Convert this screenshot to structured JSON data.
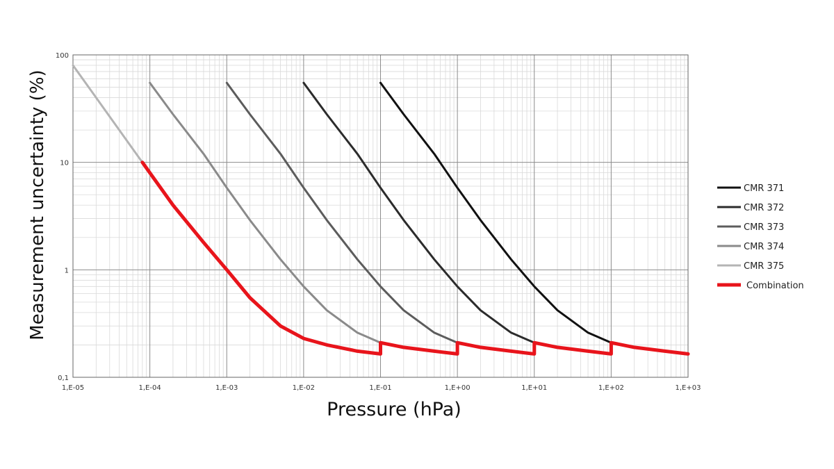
{
  "chart_data": {
    "type": "line",
    "title": "",
    "xlabel": "Pressure (hPa)",
    "ylabel": "Measurement uncertainty (%)",
    "x_scale": "log",
    "y_scale": "log",
    "xlim": [
      1e-05,
      1000
    ],
    "ylim": [
      0.1,
      100
    ],
    "grid": true,
    "legend_position": "right",
    "x_ticks": [
      {
        "value": 1e-05,
        "label": "1,E-05"
      },
      {
        "value": 0.0001,
        "label": "1,E-04"
      },
      {
        "value": 0.001,
        "label": "1,E-03"
      },
      {
        "value": 0.01,
        "label": "1,E-02"
      },
      {
        "value": 0.1,
        "label": "1,E-01"
      },
      {
        "value": 1,
        "label": "1,E+00"
      },
      {
        "value": 10,
        "label": "1,E+01"
      },
      {
        "value": 100,
        "label": "1,E+02"
      },
      {
        "value": 1000,
        "label": "1,E+03"
      }
    ],
    "y_ticks": [
      {
        "value": 0.1,
        "label": "0,1"
      },
      {
        "value": 1,
        "label": "1"
      },
      {
        "value": 10,
        "label": "10"
      },
      {
        "value": 100,
        "label": "100"
      }
    ],
    "series": [
      {
        "name": "CMR 371",
        "color": "#111111",
        "x": [
          0.1,
          0.2,
          0.5,
          1,
          2,
          5,
          10,
          20,
          50,
          100
        ],
        "y": [
          55,
          28,
          12,
          5.8,
          2.9,
          1.25,
          0.7,
          0.42,
          0.26,
          0.21
        ]
      },
      {
        "name": "CMR 372",
        "color": "#2b2b2b",
        "x": [
          0.01,
          0.02,
          0.05,
          0.1,
          0.2,
          0.5,
          1,
          2,
          5,
          10
        ],
        "y": [
          55,
          28,
          12,
          5.8,
          2.9,
          1.25,
          0.7,
          0.42,
          0.26,
          0.21
        ]
      },
      {
        "name": "CMR 373",
        "color": "#5c5c5c",
        "x": [
          0.001,
          0.002,
          0.005,
          0.01,
          0.02,
          0.05,
          0.1,
          0.2,
          0.5,
          1
        ],
        "y": [
          55,
          28,
          12,
          5.8,
          2.9,
          1.25,
          0.7,
          0.42,
          0.26,
          0.21
        ]
      },
      {
        "name": "CMR 374",
        "color": "#8a8a8a",
        "x": [
          0.0001,
          0.0002,
          0.0005,
          0.001,
          0.002,
          0.005,
          0.01,
          0.02,
          0.05,
          0.1
        ],
        "y": [
          55,
          28,
          12,
          5.8,
          2.9,
          1.25,
          0.7,
          0.42,
          0.26,
          0.21
        ]
      },
      {
        "name": "CMR 375",
        "color": "#b4b4b4",
        "x": [
          1e-05,
          2e-05,
          5e-05,
          8e-05
        ],
        "y": [
          80,
          40,
          16,
          10
        ]
      },
      {
        "name": "Combination",
        "color": "#e8141b",
        "x": [
          8e-05,
          0.0001,
          0.0002,
          0.0005,
          0.001,
          0.002,
          0.005,
          0.01,
          0.02,
          0.05,
          0.1,
          0.1,
          0.2,
          0.5,
          1,
          1,
          2,
          5,
          10,
          10,
          20,
          50,
          100,
          100,
          200,
          500,
          1000
        ],
        "y": [
          10,
          8.0,
          4.0,
          1.8,
          1.0,
          0.55,
          0.3,
          0.23,
          0.2,
          0.175,
          0.165,
          0.21,
          0.19,
          0.175,
          0.165,
          0.21,
          0.19,
          0.175,
          0.165,
          0.21,
          0.19,
          0.175,
          0.165,
          0.21,
          0.19,
          0.175,
          0.165
        ]
      }
    ]
  }
}
